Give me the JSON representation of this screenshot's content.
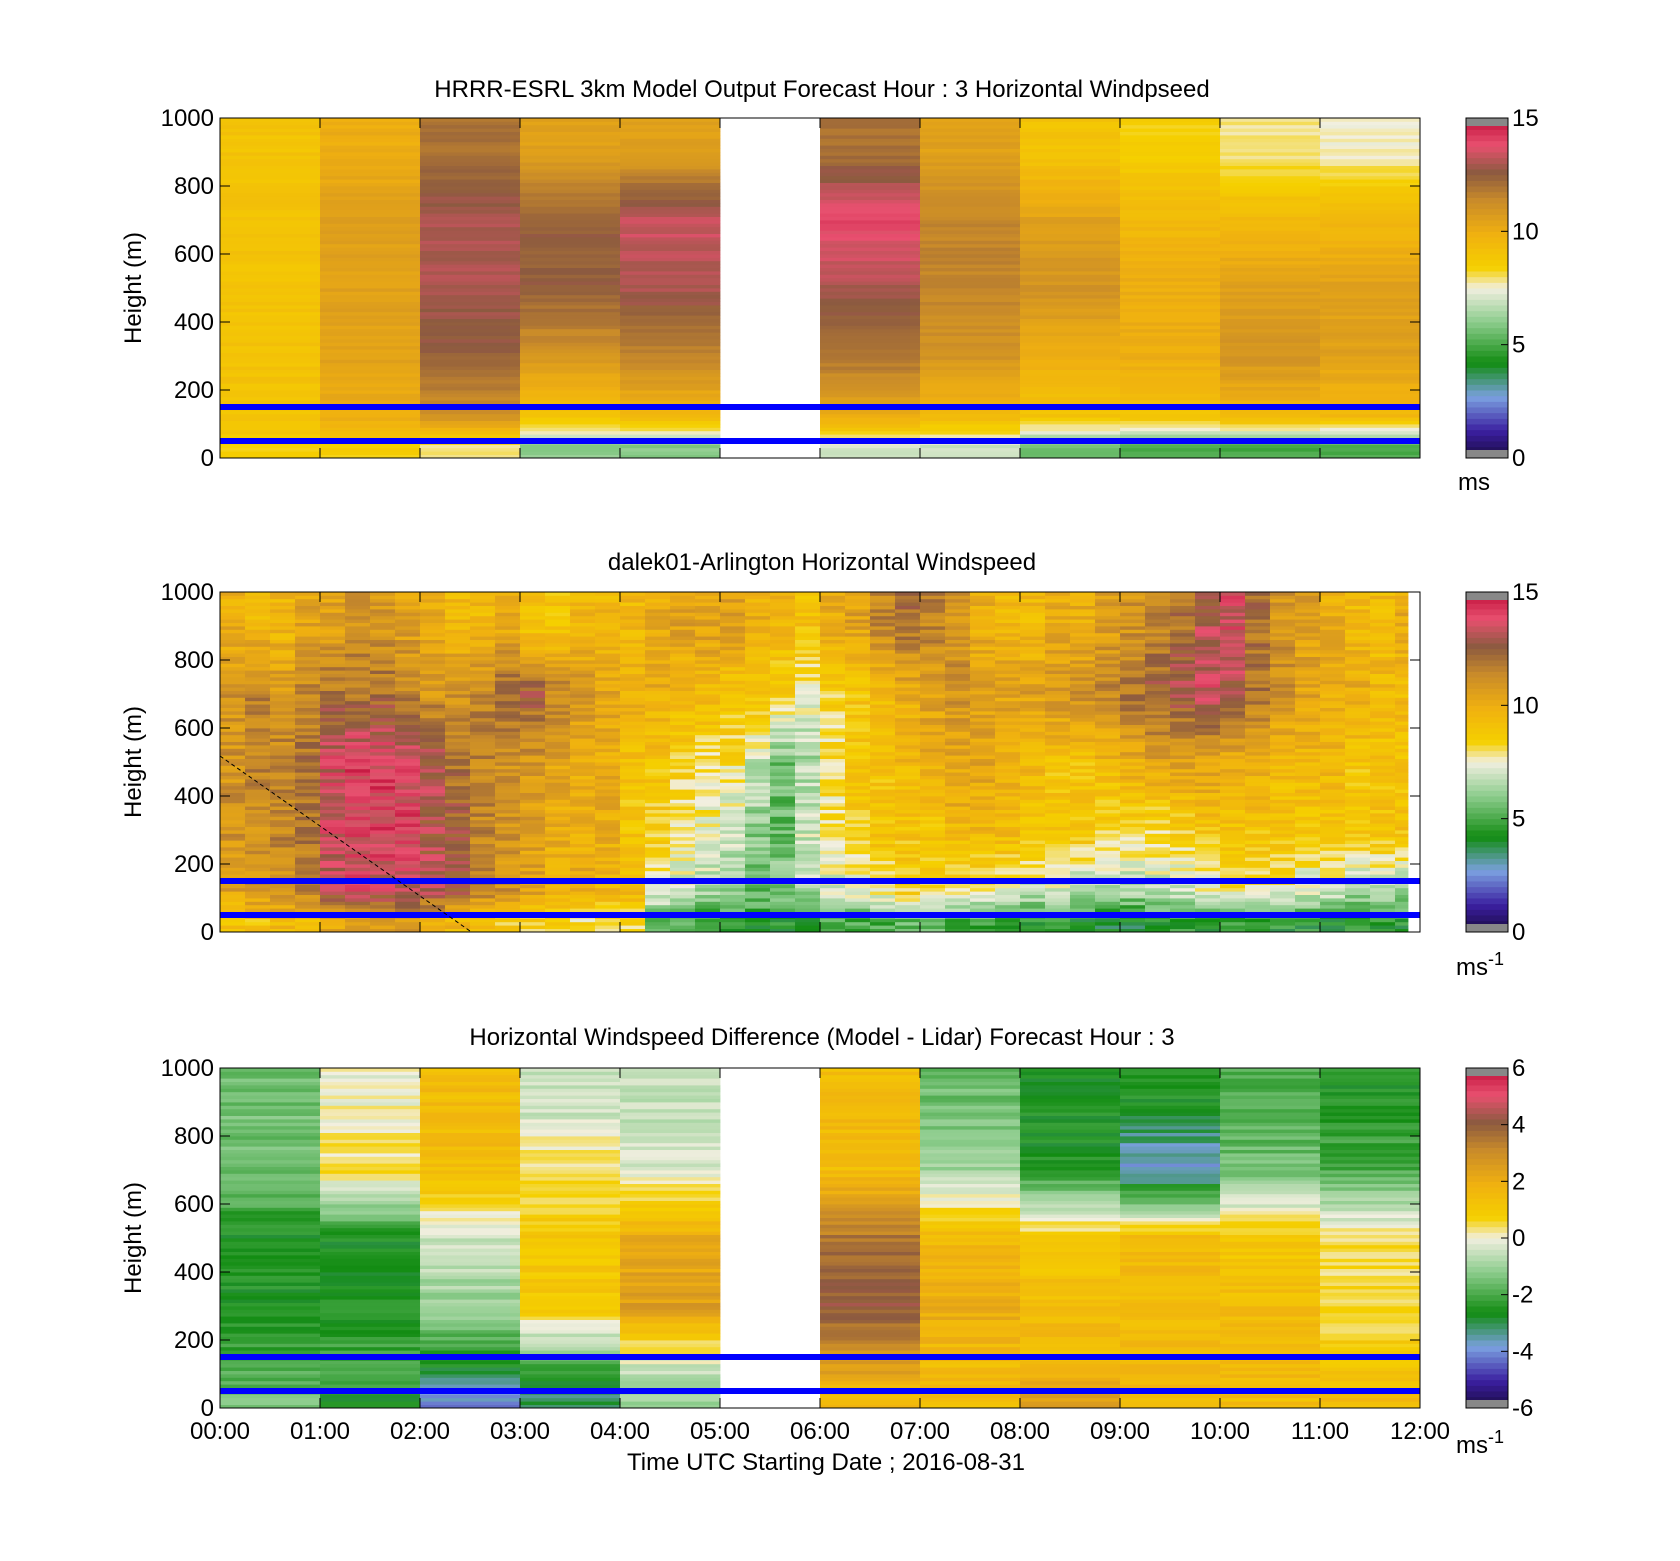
{
  "figure": {
    "xlabel": "Time UTC  Starting Date ; 2016-08-31",
    "x_ticks": [
      "00:00",
      "01:00",
      "02:00",
      "03:00",
      "04:00",
      "05:00",
      "06:00",
      "07:00",
      "08:00",
      "09:00",
      "10:00",
      "11:00",
      "12:00"
    ],
    "y_ticks": [
      "0",
      "200",
      "400",
      "600",
      "800",
      "1000"
    ],
    "ylabel": "Height (m)"
  },
  "chart_data": [
    {
      "type": "heatmap",
      "id": "model",
      "title": "HRRR-ESRL 3km Model Output   Forecast Hour : 3 Horizontal Windpseed",
      "xlabel": "",
      "ylabel": "Height (m)",
      "x_range_hours": [
        0,
        12
      ],
      "ylim": [
        0,
        1000
      ],
      "x_columns_hours": [
        0,
        1,
        2,
        3,
        4,
        5,
        6,
        7,
        8,
        9,
        10,
        11
      ],
      "missing_columns": [
        5
      ],
      "y_levels_m": [
        900,
        700,
        500,
        300,
        120,
        35
      ],
      "values_by_level": [
        [
          9,
          10,
          12,
          10.5,
          10.5,
          null,
          12,
          10.5,
          9,
          8.5,
          7.8,
          7.6
        ],
        [
          9,
          10.5,
          13,
          12.5,
          13.5,
          null,
          14,
          11.5,
          10.5,
          9.5,
          9.5,
          9.5
        ],
        [
          9,
          10.5,
          13,
          12.5,
          13,
          null,
          13,
          11.5,
          11,
          10,
          10.5,
          10.5
        ],
        [
          9,
          10.5,
          12.5,
          11,
          11.5,
          null,
          12,
          11,
          10,
          10,
          11,
          10.5
        ],
        [
          9,
          10,
          11,
          9,
          9.5,
          null,
          10,
          9.5,
          9,
          9,
          9.5,
          9.5
        ],
        [
          8.5,
          8.5,
          8,
          6,
          6,
          null,
          7,
          7,
          5.5,
          5,
          5,
          5
        ]
      ],
      "colorbar": {
        "min": 0,
        "max": 15,
        "ticks": [
          "0",
          "5",
          "10",
          "15"
        ],
        "unit": "ms",
        "unit_sup": ""
      },
      "reference_lines_m": [
        150,
        50
      ],
      "reference_line_color": "#0000ff"
    },
    {
      "type": "heatmap",
      "id": "lidar",
      "title": "dalek01-Arlington  Horizontal Windspeed",
      "xlabel": "",
      "ylabel": "Height (m)",
      "x_range_hours": [
        0,
        12
      ],
      "ylim": [
        0,
        1000
      ],
      "coverage_end_hours": 11.88,
      "time_step_hours": 0.25,
      "y_levels_m": [
        900,
        700,
        500,
        300,
        120,
        35
      ],
      "values_by_level": [
        [
          10,
          9.5,
          9.5,
          10.5,
          10.5,
          11,
          11,
          10.5,
          10,
          9.5,
          9.5,
          10,
          9,
          9,
          9.5,
          9.5,
          9.5,
          10,
          10.5,
          10.5,
          10.5,
          10,
          9.5,
          9,
          10,
          10.5,
          11.5,
          12,
          11.5,
          11,
          10,
          9.5,
          9.5,
          10,
          10,
          10.5,
          11,
          11.5,
          12,
          13,
          13.5,
          12,
          11,
          10.5,
          10,
          9.5,
          9.5,
          10
        ],
        [
          11,
          11.5,
          11,
          11.5,
          12,
          12,
          12,
          11.5,
          11,
          11,
          11.5,
          12.5,
          12.5,
          11.5,
          11,
          10.5,
          10,
          10,
          9.5,
          9.5,
          9,
          9,
          8.5,
          7.5,
          8.5,
          9,
          9.5,
          10,
          10.5,
          11,
          10.5,
          10.5,
          10.5,
          11,
          11,
          11.5,
          12,
          12.5,
          13,
          13.5,
          13,
          12,
          11,
          10.5,
          10,
          10,
          9.5,
          9.5
        ],
        [
          11,
          11.5,
          11.5,
          12,
          13.5,
          14,
          14,
          13.5,
          13,
          12,
          11.5,
          11,
          11,
          10.5,
          10,
          10,
          9,
          9,
          8.5,
          8,
          8,
          7,
          5.5,
          6.5,
          8,
          9,
          9,
          9.5,
          10,
          10.5,
          10.5,
          10,
          9.5,
          9,
          9,
          9.5,
          10,
          10.5,
          10.5,
          10.5,
          10,
          10,
          9.5,
          9.5,
          9.5,
          9,
          9,
          9
        ],
        [
          11,
          11,
          11.5,
          12,
          13.5,
          14,
          14,
          14,
          13,
          12.5,
          11.5,
          11,
          10.5,
          10,
          10,
          10,
          9,
          8.5,
          8,
          7.5,
          7,
          6,
          5.5,
          7,
          8,
          8.5,
          9,
          9,
          9,
          9.5,
          9.5,
          9.5,
          9,
          9,
          9,
          8.5,
          8.5,
          8,
          8.5,
          9,
          9,
          9,
          9,
          9,
          9,
          9,
          9,
          9
        ],
        [
          10.5,
          11,
          11,
          11.5,
          13,
          13.5,
          13.5,
          13.5,
          13,
          12.5,
          11.5,
          11,
          10.5,
          10,
          10,
          9.5,
          9.5,
          7.5,
          7,
          6.5,
          6,
          5.5,
          6,
          6.5,
          7,
          7.5,
          8,
          8.5,
          8.5,
          8,
          8,
          7.5,
          7,
          7,
          6.5,
          6.5,
          6.5,
          7,
          7,
          7.5,
          8,
          8,
          7.5,
          7,
          7,
          6.5,
          6.5,
          6.5
        ],
        [
          9,
          9,
          9.5,
          9.5,
          10,
          10.5,
          10.5,
          10.5,
          10,
          9.5,
          9,
          8.5,
          8.5,
          8.5,
          8,
          8,
          8,
          5.5,
          5,
          4.5,
          4.5,
          4.5,
          4.5,
          4.5,
          5,
          5,
          5,
          5.5,
          5.5,
          5,
          5,
          4.5,
          4.5,
          4.5,
          4.5,
          4,
          4,
          4.5,
          4.5,
          4.5,
          4.5,
          4.5,
          4.5,
          4.5,
          4.5,
          4.5,
          4.5,
          4.5
        ]
      ],
      "colorbar": {
        "min": 0,
        "max": 15,
        "ticks": [
          "0",
          "5",
          "10",
          "15"
        ],
        "unit": "ms",
        "unit_sup": "-1"
      },
      "reference_lines_m": [
        150,
        50
      ],
      "reference_line_color": "#0000ff",
      "annotation": "dashed line from (00:00, 510 m) to (02:30, 0 m)"
    },
    {
      "type": "heatmap",
      "id": "difference",
      "title": "Horizontal Windspeed Difference (Model - Lidar) Forecast Hour : 3",
      "xlabel": "Time UTC  Starting Date ; 2016-08-31",
      "ylabel": "Height (m)",
      "x_range_hours": [
        0,
        12
      ],
      "ylim": [
        0,
        1000
      ],
      "x_columns_hours": [
        0,
        1,
        2,
        3,
        4,
        5,
        6,
        7,
        8,
        9,
        10,
        11
      ],
      "missing_columns": [
        5
      ],
      "y_levels_m": [
        900,
        700,
        500,
        300,
        120,
        35
      ],
      "values_by_level": [
        [
          -1.5,
          0,
          1.5,
          -0.5,
          -0.5,
          null,
          1.5,
          -1.5,
          -2.5,
          -2.5,
          -2,
          -2.5
        ],
        [
          -1.5,
          0.5,
          1.5,
          0.5,
          -0.3,
          null,
          1.5,
          -1,
          -2.5,
          -4,
          -1.5,
          -2
        ],
        [
          -2.5,
          -2.5,
          -0.5,
          1,
          2,
          null,
          3.5,
          1.5,
          1,
          1.5,
          1,
          0.5
        ],
        [
          -2.5,
          -2.5,
          -1,
          1,
          2.5,
          null,
          4,
          2,
          1.5,
          1.5,
          1.5,
          0.5
        ],
        [
          -2,
          -2,
          -2.5,
          -2,
          -0.5,
          null,
          2.5,
          1.5,
          1.5,
          1.5,
          1.5,
          1
        ],
        [
          -1.5,
          -2.5,
          -4,
          -3,
          -1,
          null,
          1.5,
          1.5,
          2.5,
          1.5,
          1.5,
          1.5
        ]
      ],
      "colorbar": {
        "min": -6,
        "max": 6,
        "ticks": [
          "-6",
          "-4",
          "-2",
          "0",
          "2",
          "4",
          "6"
        ],
        "unit": "ms",
        "unit_sup": "-1"
      },
      "reference_lines_m": [
        150,
        50
      ],
      "reference_line_color": "#0000ff"
    }
  ]
}
